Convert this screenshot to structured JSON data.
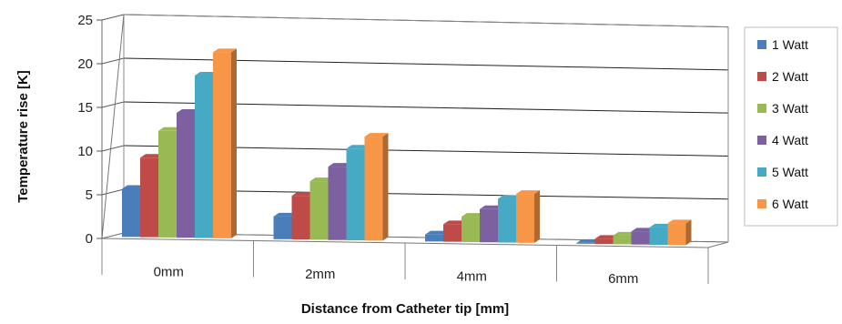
{
  "chart_data": {
    "type": "bar",
    "categories": [
      "0mm",
      "2mm",
      "4mm",
      "6mm"
    ],
    "series": [
      {
        "name": "1 Watt",
        "color": "#4a7ebb",
        "values": [
          5.5,
          2.6,
          0.8,
          0.1
        ]
      },
      {
        "name": "2 Watt",
        "color": "#be4b48",
        "values": [
          9.1,
          5.0,
          2.0,
          0.6
        ]
      },
      {
        "name": "3 Watt",
        "color": "#98b954",
        "values": [
          12.2,
          6.7,
          2.9,
          1.0
        ]
      },
      {
        "name": "4 Watt",
        "color": "#7d60a0",
        "values": [
          14.3,
          8.4,
          3.8,
          1.5
        ]
      },
      {
        "name": "5 Watt",
        "color": "#46aac5",
        "values": [
          18.6,
          10.5,
          5.0,
          2.0
        ]
      },
      {
        "name": "6 Watt",
        "color": "#f79646",
        "values": [
          21.3,
          11.9,
          5.6,
          2.5
        ]
      }
    ],
    "yticks": [
      "0",
      "5",
      "10",
      "15",
      "20",
      "25"
    ],
    "ylim": [
      0,
      25
    ],
    "xlabel": "Distance from Catheter tip [mm]",
    "ylabel": "Temperature rise [K]",
    "grid": true,
    "legend": "right"
  }
}
